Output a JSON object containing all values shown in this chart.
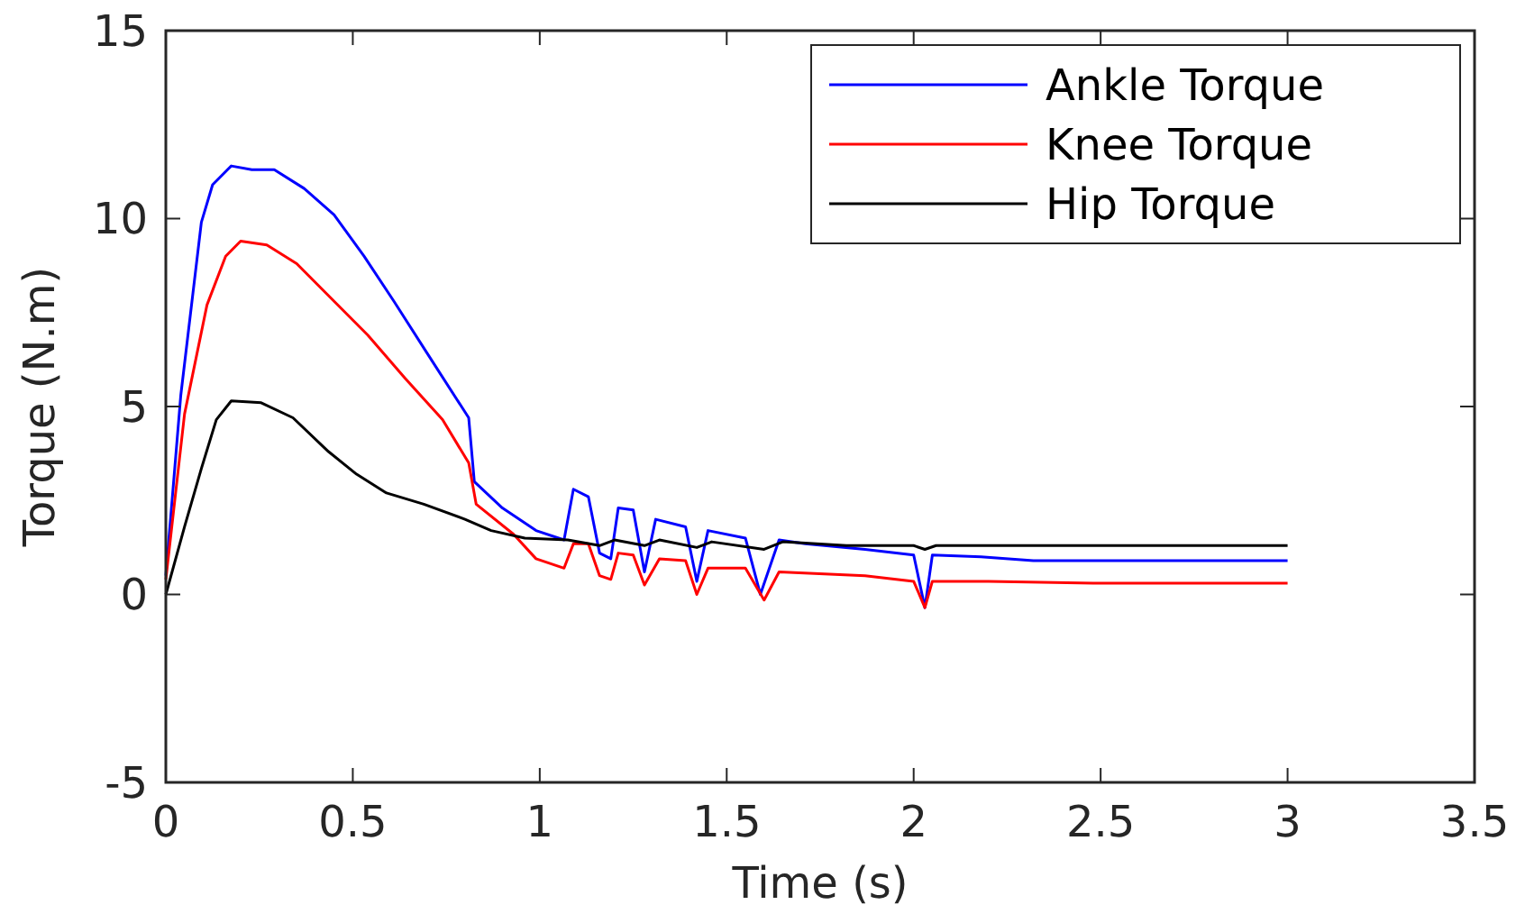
{
  "chart_data": {
    "type": "line",
    "xlabel": "Time (s)",
    "ylabel": "Torque (N.m)",
    "xlim": [
      0,
      3.5
    ],
    "xticks": [
      0,
      0.5,
      1,
      1.5,
      2,
      2.5,
      3,
      3.5
    ],
    "ylim": [
      -5,
      15
    ],
    "yticks": [
      -5,
      0,
      5,
      10,
      15
    ],
    "grid": false,
    "legend": "top right",
    "series": [
      {
        "name": "Ankle Torque",
        "color": "#0000ff",
        "x": [
          0,
          0.04,
          0.095,
          0.125,
          0.175,
          0.23,
          0.29,
          0.37,
          0.45,
          0.53,
          0.61,
          0.7,
          0.81,
          0.825,
          0.9,
          0.99,
          1.065,
          1.09,
          1.13,
          1.16,
          1.19,
          1.21,
          1.25,
          1.28,
          1.31,
          1.39,
          1.42,
          1.45,
          1.55,
          1.59,
          1.64,
          1.71,
          1.87,
          2.0,
          2.03,
          2.05,
          2.18,
          2.32,
          2.51,
          3.0
        ],
        "values": [
          0.5,
          5.3,
          9.9,
          10.9,
          11.4,
          11.3,
          11.3,
          10.8,
          10.1,
          9.0,
          7.8,
          6.4,
          4.7,
          3.0,
          2.3,
          1.7,
          1.45,
          2.8,
          2.6,
          1.1,
          0.95,
          2.3,
          2.25,
          0.6,
          2.0,
          1.8,
          0.35,
          1.7,
          1.5,
          0.0,
          1.45,
          1.35,
          1.2,
          1.05,
          -0.35,
          1.05,
          1.0,
          0.9,
          0.9,
          0.9
        ]
      },
      {
        "name": "Knee Torque",
        "color": "#ff0000",
        "x": [
          0,
          0.05,
          0.11,
          0.16,
          0.2,
          0.27,
          0.35,
          0.45,
          0.54,
          0.64,
          0.74,
          0.81,
          0.83,
          0.93,
          0.99,
          1.065,
          1.09,
          1.13,
          1.16,
          1.19,
          1.21,
          1.25,
          1.28,
          1.32,
          1.39,
          1.42,
          1.45,
          1.55,
          1.6,
          1.64,
          1.87,
          2.0,
          2.03,
          2.05,
          2.2,
          2.48,
          3.0
        ],
        "values": [
          0.4,
          4.8,
          7.7,
          9.0,
          9.4,
          9.3,
          8.8,
          7.8,
          6.9,
          5.75,
          4.65,
          3.5,
          2.4,
          1.6,
          0.95,
          0.7,
          1.35,
          1.35,
          0.5,
          0.4,
          1.1,
          1.05,
          0.25,
          0.95,
          0.9,
          0.0,
          0.7,
          0.7,
          -0.15,
          0.6,
          0.5,
          0.35,
          -0.35,
          0.35,
          0.35,
          0.3,
          0.3
        ]
      },
      {
        "name": "Hip Torque",
        "color": "#000000",
        "x": [
          0,
          0.05,
          0.095,
          0.135,
          0.175,
          0.255,
          0.34,
          0.435,
          0.51,
          0.59,
          0.69,
          0.8,
          0.87,
          0.96,
          1.075,
          1.16,
          1.2,
          1.28,
          1.32,
          1.42,
          1.46,
          1.6,
          1.65,
          1.82,
          2.0,
          2.03,
          2.06,
          3.0
        ],
        "values": [
          0.0,
          1.8,
          3.35,
          4.65,
          5.15,
          5.1,
          4.7,
          3.8,
          3.2,
          2.7,
          2.4,
          2.0,
          1.7,
          1.5,
          1.45,
          1.3,
          1.45,
          1.3,
          1.45,
          1.25,
          1.4,
          1.2,
          1.4,
          1.3,
          1.3,
          1.2,
          1.3,
          1.3
        ]
      }
    ]
  }
}
